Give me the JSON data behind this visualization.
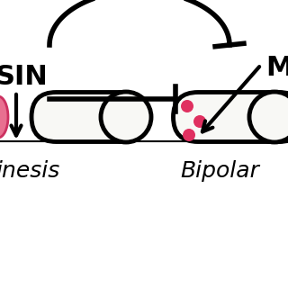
{
  "bg_color": "#ffffff",
  "sin_label": "SIN",
  "mor_label": "M",
  "left_label": "inesis",
  "right_label": "Bipolar",
  "lw": 3.5,
  "arrow_lw": 3.0
}
